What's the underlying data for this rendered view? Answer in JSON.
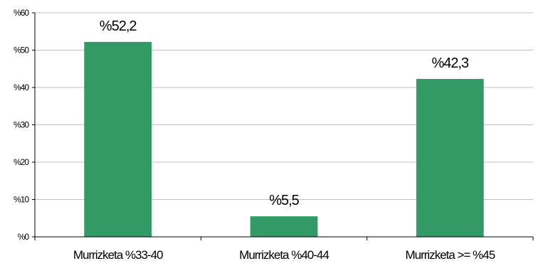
{
  "chart_data": {
    "type": "bar",
    "categories": [
      "Murrizketa %33-40",
      "Murrizketa %40-44",
      "Murrizketa >= %45"
    ],
    "values": [
      52.2,
      5.5,
      42.3
    ],
    "data_labels": [
      "%52,2",
      "%5,5",
      "%42,3"
    ],
    "y_ticks": [
      0,
      10,
      20,
      30,
      40,
      50,
      60
    ],
    "y_tick_labels": [
      "%0",
      "%10",
      "%20",
      "%30",
      "%40",
      "%50",
      "%60"
    ],
    "ylim": [
      0,
      60
    ],
    "grid": true,
    "legend": "none",
    "colors": {
      "bar": "#339966",
      "grid": "#c0c0c0",
      "axis": "#000000"
    }
  }
}
